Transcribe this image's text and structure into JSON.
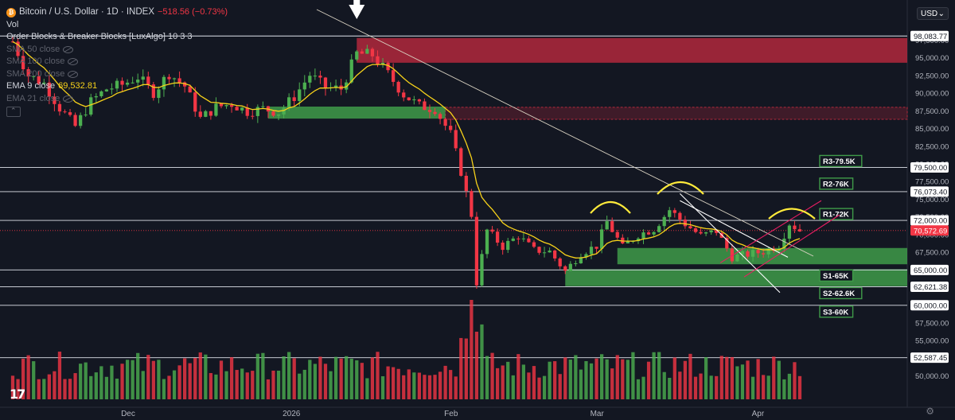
{
  "legend": {
    "title": "Bitcoin / U.S. Dollar · 1D · INDEX",
    "change": "−518.56 (−0.73%)",
    "vol": "Vol",
    "indicator": "Order Blocks & Breaker Blocks [LuxAlgo] 10 3 3",
    "sma1": "SMA 50 close",
    "sma2": "SMA 100 close",
    "sma3": "SMA 200 close",
    "ema": "EMA 9 close",
    "ema_value": "69,532.81",
    "ema21": "EMA 21 close"
  },
  "currency": {
    "label": "USD",
    "icon": "chevron-down-icon"
  },
  "logo": {
    "text": "17",
    "icon": "tradingview-logo-icon"
  },
  "colors": {
    "bg": "#131722",
    "up": "#4caf50",
    "down": "#f23645",
    "ema": "#f7d21a",
    "supply": "#b2283c",
    "demand": "#3f9b49",
    "hline": "#e0e3eb",
    "pitch": "#e91e63",
    "hs": "#ffeb3b"
  },
  "chart_data": {
    "type": "candlestick",
    "title": "Bitcoin / U.S. Dollar · 1D · INDEX",
    "x_ticks": [
      "Dec",
      "2026",
      "Feb",
      "Mar",
      "Apr"
    ],
    "y_ticks": [
      "97,500.00",
      "95,000.00",
      "92,500.00",
      "90,000.00",
      "87,500.00",
      "85,000.00",
      "82,500.00",
      "80,000.00",
      "77,500.00",
      "75,000.00",
      "72,500.00",
      "70,000.00",
      "67,500.00",
      "65,000.00",
      "62,500.00",
      "60,000.00",
      "57,500.00",
      "55,000.00",
      "52,500.00",
      "50,000.00"
    ],
    "ylim": [
      48500,
      99800
    ],
    "price_labels": [
      {
        "text": "98,083.77",
        "value": 98083.77
      },
      {
        "text": "79,500.00",
        "value": 79500
      },
      {
        "text": "76,073.40",
        "value": 76073.4
      },
      {
        "text": "72,000.00",
        "value": 72000
      },
      {
        "text": "70,572.69",
        "value": 70572.69,
        "current": true
      },
      {
        "text": "65,000.00",
        "value": 65000
      },
      {
        "text": "62,621.38",
        "value": 62621.38
      },
      {
        "text": "60,000.00",
        "value": 60000
      },
      {
        "text": "52,587.45",
        "value": 52587.45
      }
    ],
    "levels": [
      {
        "label": "R3-79.5K",
        "value": 79500
      },
      {
        "label": "R2-76K",
        "value": 76073.4
      },
      {
        "label": "R1-72K",
        "value": 72000
      },
      {
        "label": "S1-65K",
        "value": 65000
      },
      {
        "label": "S2-62.6K",
        "value": 62621.38
      },
      {
        "label": "S3-60K",
        "value": 60000
      }
    ],
    "zones": [
      {
        "kind": "supply",
        "from": 94300,
        "to": 97800,
        "start": "2026-01-14"
      },
      {
        "kind": "breaker",
        "from": 86300,
        "to": 88000,
        "start": "2026-01-31"
      },
      {
        "kind": "demand",
        "from": 86400,
        "to": 88100,
        "start": "2025-12-28",
        "end": "2026-01-31"
      },
      {
        "kind": "demand",
        "from": 65800,
        "to": 68100,
        "start": "2026-03-05"
      },
      {
        "kind": "demand",
        "from": 62700,
        "to": 65100,
        "start": "2026-02-23"
      }
    ],
    "closes": [
      {
        "d": "2025-11-09",
        "c": 97300
      },
      {
        "d": "2025-11-12",
        "c": 92500
      },
      {
        "d": "2025-11-15",
        "c": 91400
      },
      {
        "d": "2025-11-18",
        "c": 87900
      },
      {
        "d": "2025-11-21",
        "c": 85300
      },
      {
        "d": "2025-11-24",
        "c": 88800
      },
      {
        "d": "2025-11-27",
        "c": 90600
      },
      {
        "d": "2025-11-30",
        "c": 91200
      },
      {
        "d": "2025-12-03",
        "c": 92300
      },
      {
        "d": "2025-12-06",
        "c": 90100
      },
      {
        "d": "2025-12-09",
        "c": 92800
      },
      {
        "d": "2025-12-12",
        "c": 91000
      },
      {
        "d": "2025-12-15",
        "c": 86400
      },
      {
        "d": "2025-12-18",
        "c": 88000
      },
      {
        "d": "2025-12-21",
        "c": 88500
      },
      {
        "d": "2025-12-24",
        "c": 87400
      },
      {
        "d": "2025-12-27",
        "c": 87800
      },
      {
        "d": "2025-12-30",
        "c": 87300
      },
      {
        "d": "2026-01-02",
        "c": 89500
      },
      {
        "d": "2026-01-05",
        "c": 92600
      },
      {
        "d": "2026-01-08",
        "c": 90800
      },
      {
        "d": "2026-01-11",
        "c": 90600
      },
      {
        "d": "2026-01-14",
        "c": 95600
      },
      {
        "d": "2026-01-17",
        "c": 95400
      },
      {
        "d": "2026-01-20",
        "c": 92700
      },
      {
        "d": "2026-01-23",
        "c": 89800
      },
      {
        "d": "2026-01-26",
        "c": 88200
      },
      {
        "d": "2026-01-29",
        "c": 87800
      },
      {
        "d": "2026-02-01",
        "c": 84200
      },
      {
        "d": "2026-02-03",
        "c": 78900
      },
      {
        "d": "2026-02-05",
        "c": 72800
      },
      {
        "d": "2026-02-06",
        "c": 63200
      },
      {
        "d": "2026-02-08",
        "c": 70600
      },
      {
        "d": "2026-02-11",
        "c": 68300
      },
      {
        "d": "2026-02-14",
        "c": 69800
      },
      {
        "d": "2026-02-17",
        "c": 67800
      },
      {
        "d": "2026-02-20",
        "c": 67600
      },
      {
        "d": "2026-02-23",
        "c": 64800
      },
      {
        "d": "2026-02-26",
        "c": 67400
      },
      {
        "d": "2026-03-01",
        "c": 68400
      },
      {
        "d": "2026-03-03",
        "c": 71800
      },
      {
        "d": "2026-03-06",
        "c": 68200
      },
      {
        "d": "2026-03-09",
        "c": 70000
      },
      {
        "d": "2026-03-12",
        "c": 70800
      },
      {
        "d": "2026-03-15",
        "c": 73500
      },
      {
        "d": "2026-03-18",
        "c": 71500
      },
      {
        "d": "2026-03-21",
        "c": 69800
      },
      {
        "d": "2026-03-24",
        "c": 70500
      },
      {
        "d": "2026-03-27",
        "c": 66800
      },
      {
        "d": "2026-03-30",
        "c": 67200
      },
      {
        "d": "2026-04-02",
        "c": 67600
      },
      {
        "d": "2026-04-05",
        "c": 68500
      },
      {
        "d": "2026-04-07",
        "c": 71600
      },
      {
        "d": "2026-04-09",
        "c": 70573
      }
    ]
  }
}
